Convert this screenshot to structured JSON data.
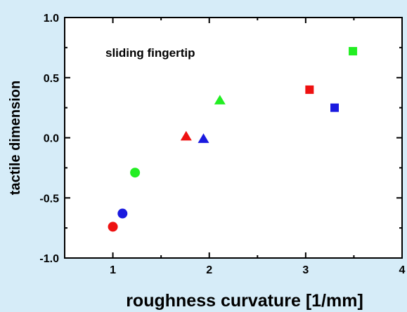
{
  "colors": {
    "background": "#d6ecf8",
    "plot_area": "#ffffff",
    "red": "#ee1111",
    "blue": "#1a1adf",
    "green": "#22ee22"
  },
  "chart_data": {
    "type": "scatter",
    "title": "",
    "xlabel": "roughness curvature [1/mm]",
    "ylabel": "tactile dimension",
    "xlim": [
      0.5,
      4
    ],
    "ylim": [
      -1.0,
      1.0
    ],
    "x_ticks": [
      "1",
      "2",
      "3",
      "4"
    ],
    "y_ticks": [
      "-1.0",
      "-0.5",
      "0.0",
      "0.5",
      "1.0"
    ],
    "grid": false,
    "annotation": "sliding fingertip",
    "points": [
      {
        "x": 1.0,
        "y": -0.74,
        "color": "red",
        "marker": "circle"
      },
      {
        "x": 1.1,
        "y": -0.63,
        "color": "blue",
        "marker": "circle"
      },
      {
        "x": 1.23,
        "y": -0.29,
        "color": "green",
        "marker": "circle"
      },
      {
        "x": 1.76,
        "y": 0.01,
        "color": "red",
        "marker": "triangle"
      },
      {
        "x": 1.94,
        "y": -0.01,
        "color": "blue",
        "marker": "triangle"
      },
      {
        "x": 2.11,
        "y": 0.31,
        "color": "green",
        "marker": "triangle"
      },
      {
        "x": 3.04,
        "y": 0.4,
        "color": "red",
        "marker": "square"
      },
      {
        "x": 3.3,
        "y": 0.25,
        "color": "blue",
        "marker": "square"
      },
      {
        "x": 3.49,
        "y": 0.72,
        "color": "green",
        "marker": "square"
      }
    ]
  }
}
